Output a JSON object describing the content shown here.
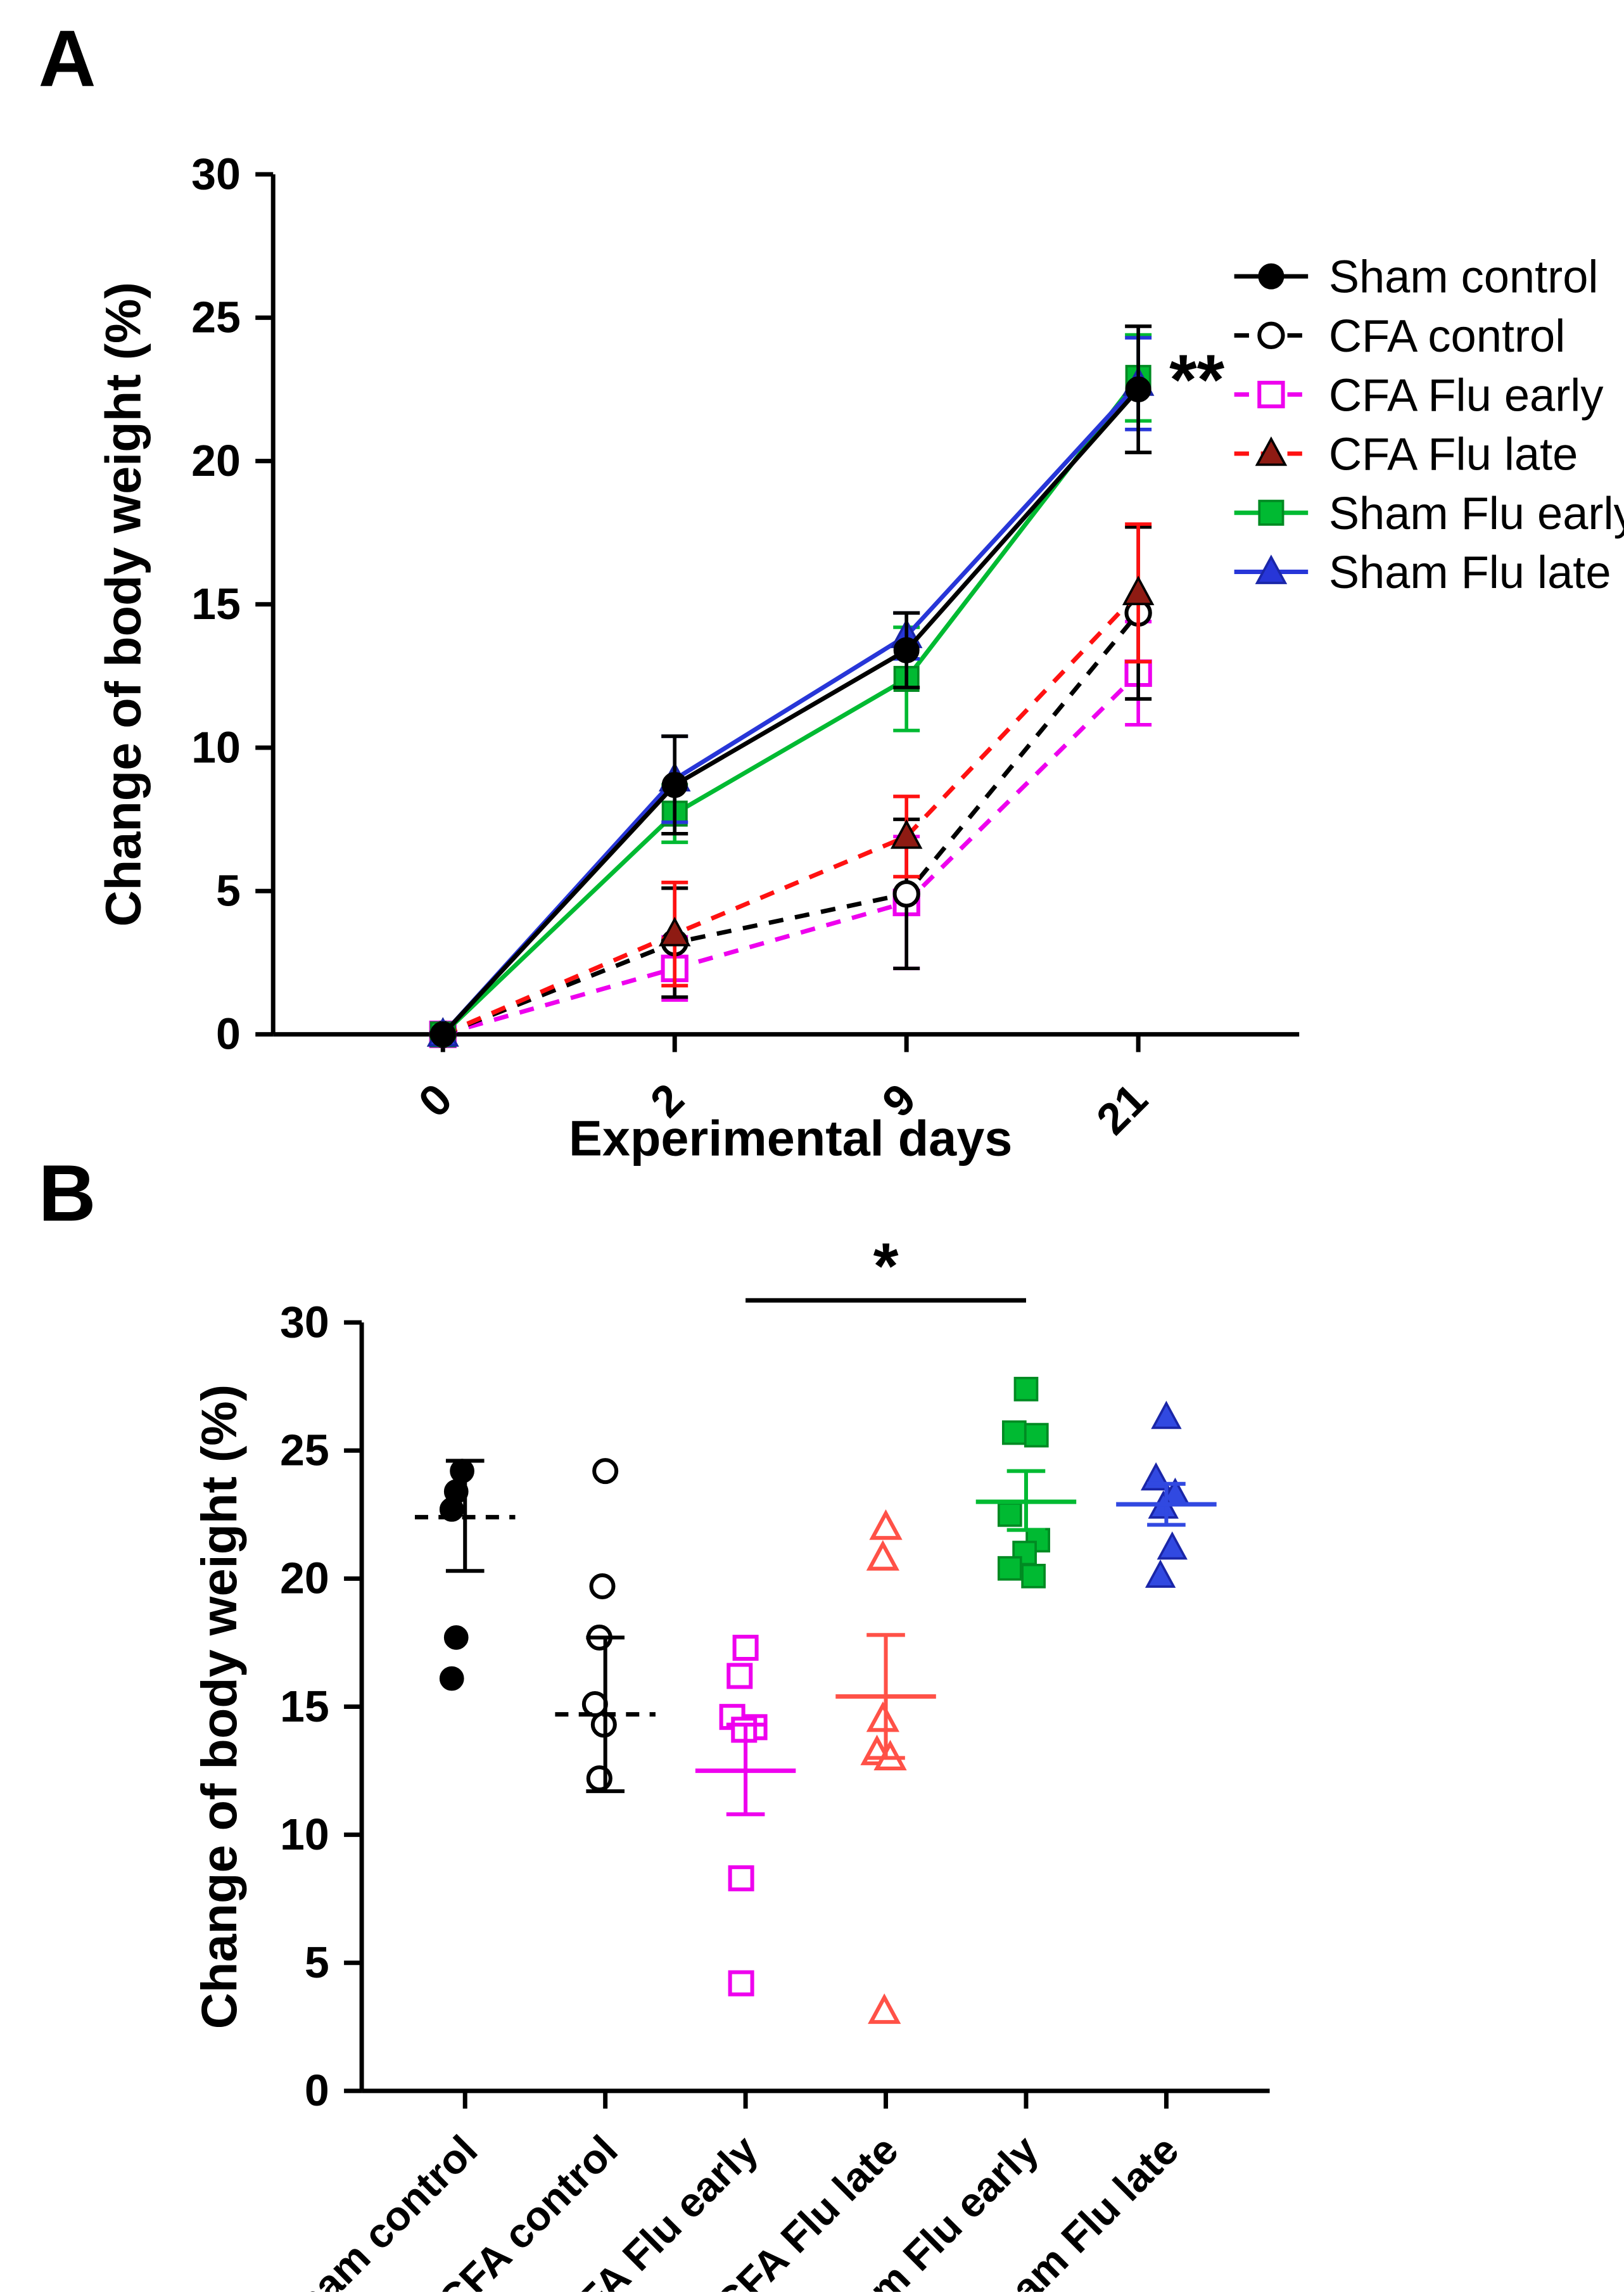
{
  "figure": {
    "panels": [
      {
        "label": "A"
      },
      {
        "label": "B"
      }
    ]
  },
  "chart_data": [
    {
      "panel": "A",
      "type": "line",
      "title": "",
      "xlabel": "Experimental days",
      "ylabel": "Change of body weight (%)",
      "x": [
        0,
        2,
        9,
        21
      ],
      "x_tick_labels": [
        "0",
        "2",
        "9",
        "21"
      ],
      "ylim": [
        0,
        30
      ],
      "yticks": [
        0,
        5,
        10,
        15,
        20,
        25,
        30
      ],
      "grid": false,
      "legend_position": "right",
      "significance_label": "**",
      "series": [
        {
          "name": "Sham control",
          "color": "#000000",
          "line": "solid",
          "marker": "circle-filled",
          "marker_fill": "#000000",
          "marker_stroke": "#000000",
          "values": [
            0,
            8.7,
            13.4,
            22.5
          ],
          "errors": [
            0,
            1.7,
            1.3,
            2.2
          ]
        },
        {
          "name": "CFA control",
          "color": "#000000",
          "line": "dashed",
          "marker": "circle-open",
          "marker_fill": "#ffffff",
          "marker_stroke": "#000000",
          "values": [
            0,
            3.2,
            4.9,
            14.7
          ],
          "errors": [
            0,
            1.9,
            2.6,
            3.0
          ]
        },
        {
          "name": "CFA Flu early",
          "color": "#EE00EE",
          "line": "dashed",
          "marker": "square-open",
          "marker_fill": "#ffffff",
          "marker_stroke": "#EE00EE",
          "values": [
            0,
            2.3,
            4.6,
            12.6
          ],
          "errors": [
            0,
            1.1,
            2.3,
            1.8
          ]
        },
        {
          "name": "CFA Flu late",
          "color": "#FF1111",
          "line": "dashed",
          "marker": "triangle-filled",
          "marker_fill": "#8E1B13",
          "marker_stroke": "#000000",
          "values": [
            0,
            3.5,
            6.9,
            15.4
          ],
          "errors": [
            0,
            1.8,
            1.4,
            2.4
          ]
        },
        {
          "name": "Sham Flu early",
          "color": "#00BA32",
          "line": "solid",
          "marker": "square-filled",
          "marker_fill": "#00BA32",
          "marker_stroke": "#008A22",
          "values": [
            0,
            7.7,
            12.4,
            22.9
          ],
          "errors": [
            0,
            1.0,
            1.8,
            1.5
          ]
        },
        {
          "name": "Sham Flu late",
          "color": "#2736D8",
          "line": "solid",
          "marker": "triangle-filled",
          "marker_fill": "#2736D8",
          "marker_stroke": "#1A26A8",
          "values": [
            0,
            8.9,
            13.9,
            22.7
          ],
          "errors": [
            0,
            1.5,
            0.8,
            1.6
          ]
        }
      ]
    },
    {
      "panel": "B",
      "type": "scatter",
      "title": "",
      "xlabel": "",
      "ylabel": "Change of body weight (%)",
      "ylim": [
        0,
        30
      ],
      "yticks": [
        0,
        5,
        10,
        15,
        20,
        25,
        30
      ],
      "grid": false,
      "significance": {
        "label": "*",
        "from": "CFA Flu early",
        "to": "Sham Flu early"
      },
      "groups": [
        {
          "name": "Sham control",
          "color": "#000000",
          "marker": "circle-filled",
          "marker_fill": "#000000",
          "marker_stroke": "#000000",
          "mean": 22.4,
          "sem_low": 20.3,
          "sem_high": 24.6,
          "mean_line": "dashed",
          "points": [
            24.2,
            23.4,
            22.7,
            17.7,
            16.1
          ],
          "jitter": [
            -2,
            -6,
            -9,
            -6,
            -9
          ]
        },
        {
          "name": "CFA control",
          "color": "#000000",
          "marker": "circle-open",
          "marker_fill": "#ffffff",
          "marker_stroke": "#000000",
          "mean": 14.7,
          "sem_low": 11.7,
          "sem_high": 17.7,
          "mean_line": "dashed",
          "points": [
            24.2,
            19.7,
            17.7,
            15.1,
            14.3,
            12.2
          ],
          "jitter": [
            0,
            -2,
            -4,
            -7,
            -1,
            -4
          ]
        },
        {
          "name": "CFA Flu early",
          "color": "#EE00EE",
          "marker": "square-open",
          "marker_fill": "#ffffff",
          "marker_stroke": "#EE00EE",
          "mean": 12.5,
          "sem_low": 10.8,
          "sem_high": 14.3,
          "mean_line": "solid",
          "points": [
            17.3,
            16.2,
            14.6,
            14.2,
            14.1,
            8.3,
            4.2
          ],
          "jitter": [
            0,
            -4,
            -9,
            6,
            -1,
            -3,
            -3
          ]
        },
        {
          "name": "CFA Flu late",
          "color": "#FF5147",
          "marker": "triangle-open",
          "marker_fill": "#ffffff",
          "marker_stroke": "#FF5147",
          "mean": 15.4,
          "sem_low": 13.0,
          "sem_high": 17.8,
          "mean_line": "solid",
          "points": [
            22.0,
            20.8,
            14.5,
            13.2,
            13.0,
            3.1
          ],
          "jitter": [
            0,
            -2,
            -2,
            -6,
            3,
            -1
          ]
        },
        {
          "name": "Sham Flu early",
          "color": "#00BA32",
          "marker": "square-filled",
          "marker_fill": "#00BA32",
          "marker_stroke": "#008A22",
          "mean": 23.0,
          "sem_low": 21.9,
          "sem_high": 24.2,
          "mean_line": "solid",
          "points": [
            27.4,
            25.7,
            25.6,
            22.5,
            21.5,
            21.0,
            20.4,
            20.1
          ],
          "jitter": [
            0,
            -8,
            7,
            -11,
            8,
            -1,
            -11,
            5
          ]
        },
        {
          "name": "Sham Flu late",
          "color": "#3149E1",
          "marker": "triangle-filled",
          "marker_fill": "#3149E1",
          "marker_stroke": "#1A26A8",
          "mean": 22.9,
          "sem_low": 22.1,
          "sem_high": 23.7,
          "mean_line": "solid",
          "points": [
            26.3,
            23.9,
            23.3,
            22.8,
            21.2,
            20.1
          ],
          "jitter": [
            0,
            -7,
            6,
            -2,
            4,
            -4
          ]
        }
      ]
    }
  ]
}
